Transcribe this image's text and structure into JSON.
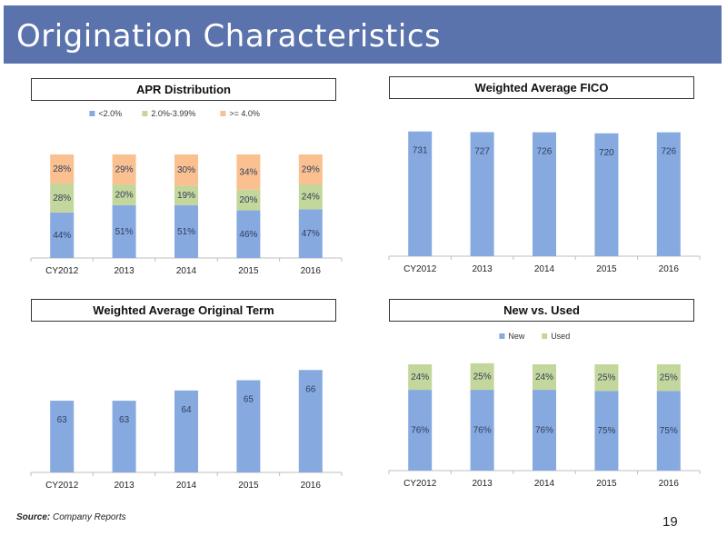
{
  "slide": {
    "title": "Origination Characteristics",
    "source_label": "Source:",
    "source_text": "Company Reports",
    "page_number": "19",
    "accent_color": "#5b73ad"
  },
  "chart_data": [
    {
      "id": "apr",
      "type": "bar",
      "stacked": true,
      "title": "APR Distribution",
      "categories": [
        "CY2012",
        "2013",
        "2014",
        "2015",
        "2016"
      ],
      "series": [
        {
          "name": "<2.0%",
          "values": [
            44,
            51,
            51,
            46,
            47
          ],
          "labels": [
            "44%",
            "51%",
            "51%",
            "46%",
            "47%"
          ],
          "color": "#86a9e0"
        },
        {
          "name": "2.0%-3.99%",
          "values": [
            28,
            20,
            19,
            20,
            24
          ],
          "labels": [
            "28%",
            "20%",
            "19%",
            "20%",
            "24%"
          ],
          "color": "#c3d69b"
        },
        {
          "name": ">= 4.0%",
          "values": [
            28,
            29,
            30,
            34,
            29
          ],
          "labels": [
            "28%",
            "29%",
            "30%",
            "34%",
            "29%"
          ],
          "color": "#fac090"
        }
      ],
      "ylim": [
        0,
        100
      ],
      "legend": "top"
    },
    {
      "id": "fico",
      "type": "bar",
      "title": "Weighted Average FICO",
      "categories": [
        "CY2012",
        "2013",
        "2014",
        "2015",
        "2016"
      ],
      "series": [
        {
          "values": [
            731,
            727,
            726,
            720,
            726
          ],
          "labels": [
            "731",
            "727",
            "726",
            "720",
            "726"
          ],
          "color": "#86a9e0"
        }
      ],
      "ylim": [
        0,
        740
      ]
    },
    {
      "id": "term",
      "type": "bar",
      "title": "Weighted Average Original Term",
      "categories": [
        "CY2012",
        "2013",
        "2014",
        "2015",
        "2016"
      ],
      "series": [
        {
          "values": [
            63,
            63,
            64,
            65,
            66
          ],
          "labels": [
            "63",
            "63",
            "64",
            "65",
            "66"
          ],
          "color": "#86a9e0"
        }
      ],
      "ylim": [
        56,
        67
      ]
    },
    {
      "id": "newused",
      "type": "bar",
      "stacked": true,
      "title": "New vs. Used",
      "categories": [
        "CY2012",
        "2013",
        "2014",
        "2015",
        "2016"
      ],
      "series": [
        {
          "name": "New",
          "values": [
            76,
            76,
            76,
            75,
            75
          ],
          "labels": [
            "76%",
            "76%",
            "76%",
            "75%",
            "75%"
          ],
          "color": "#86a9e0"
        },
        {
          "name": "Used",
          "values": [
            24,
            25,
            24,
            25,
            25
          ],
          "labels": [
            "24%",
            "25%",
            "24%",
            "25%",
            "25%"
          ],
          "color": "#c3d69b"
        }
      ],
      "ylim": [
        0,
        100
      ],
      "legend": "top"
    }
  ]
}
